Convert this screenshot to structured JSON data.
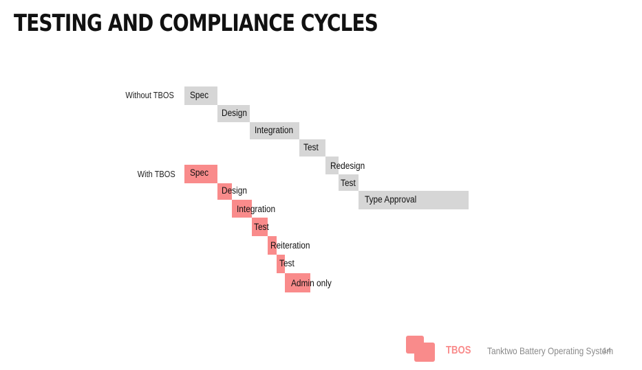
{
  "title": "TESTING AND COMPLIANCE CYCLES",
  "rows": {
    "without_label": "Without TBOS",
    "with_label": "With TBOS"
  },
  "without_tbos": [
    {
      "label": "Spec"
    },
    {
      "label": "Design"
    },
    {
      "label": "Integration"
    },
    {
      "label": "Test"
    },
    {
      "label": "Redesign"
    },
    {
      "label": "Test"
    },
    {
      "label": "Type Approval"
    }
  ],
  "with_tbos": [
    {
      "label": "Spec"
    },
    {
      "label": "Design"
    },
    {
      "label": "Integration"
    },
    {
      "label": "Test"
    },
    {
      "label": "Reiteration"
    },
    {
      "label": "Test"
    },
    {
      "label": "Admin only"
    }
  ],
  "colors": {
    "without": "#d6d6d6",
    "with": "#f98b8b"
  },
  "footer": {
    "brand": "TBOS",
    "tagline": "Tanktwo Battery Operating System",
    "page": "14"
  }
}
